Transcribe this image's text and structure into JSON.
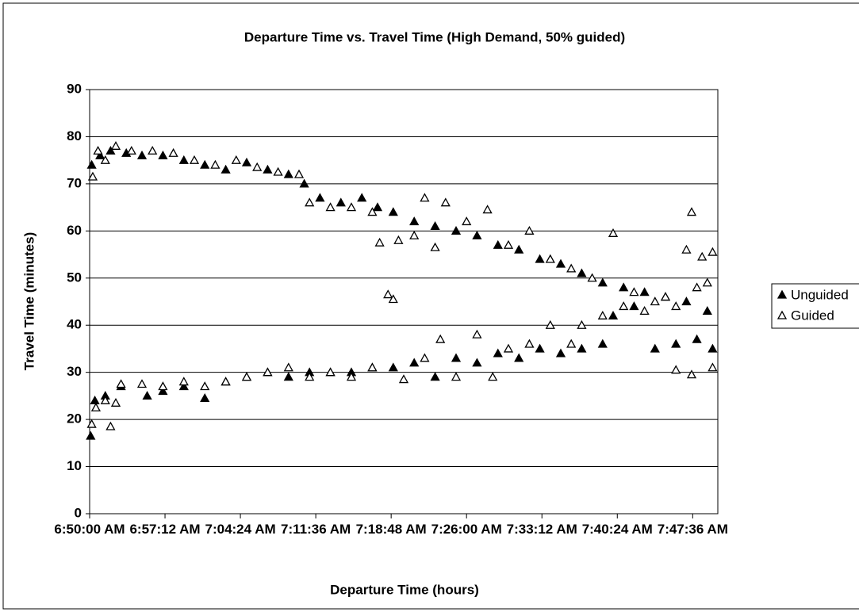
{
  "chart_data": {
    "type": "scatter",
    "title": "Departure Time vs. Travel Time (High Demand, 50% guided)",
    "xlabel": "Departure Time (hours)",
    "ylabel": "Travel Time (minutes)",
    "xlim": [
      410,
      470
    ],
    "xticks": [
      {
        "value": 410,
        "label": "6:50:00 AM"
      },
      {
        "value": 417.2,
        "label": "6:57:12 AM"
      },
      {
        "value": 424.4,
        "label": "7:04:24 AM"
      },
      {
        "value": 431.6,
        "label": "7:11:36 AM"
      },
      {
        "value": 438.8,
        "label": "7:18:48 AM"
      },
      {
        "value": 446,
        "label": "7:26:00 AM"
      },
      {
        "value": 453.2,
        "label": "7:33:12 AM"
      },
      {
        "value": 460.4,
        "label": "7:40:24 AM"
      },
      {
        "value": 467.6,
        "label": "7:47:36 AM"
      }
    ],
    "ylim": [
      0,
      90
    ],
    "yticks": [
      0,
      10,
      20,
      30,
      40,
      50,
      60,
      70,
      80,
      90
    ],
    "grid": true,
    "legend": "right",
    "series": [
      {
        "name": "Unguided",
        "color": "#000000",
        "marker": "filled-triangle",
        "x": [
          410.2,
          411,
          412,
          413.5,
          415,
          417,
          419,
          421,
          423,
          425,
          427,
          429,
          430.5,
          432,
          434,
          436,
          437.5,
          439,
          441,
          443,
          445,
          447,
          449,
          451,
          453,
          455,
          457,
          459,
          461,
          463,
          465,
          467,
          469,
          410.1,
          410.5,
          411.5,
          413,
          415.5,
          417,
          419,
          421,
          423,
          425,
          427,
          429,
          431,
          433,
          435,
          437,
          439,
          441,
          443,
          445,
          447,
          449,
          451,
          453,
          455,
          457,
          459,
          460,
          462,
          464,
          466,
          468,
          469.5
        ],
        "y": [
          74,
          76,
          77,
          76.5,
          76,
          76,
          75,
          74,
          73,
          74.5,
          73,
          72,
          70,
          67,
          66,
          67,
          65,
          64,
          62,
          61,
          60,
          59,
          57,
          56,
          54,
          53,
          51,
          49,
          48,
          47,
          46,
          45,
          43,
          16.5,
          24,
          25,
          27,
          25,
          26,
          27,
          24.5,
          28,
          29,
          30,
          29,
          30,
          30,
          30,
          31,
          31,
          32,
          29,
          33,
          32,
          34,
          33,
          35,
          34,
          35,
          36,
          42,
          44,
          35,
          36,
          37,
          35
        ]
      },
      {
        "name": "Guided",
        "color": "#000000",
        "marker": "open-triangle",
        "x": [
          410.3,
          410.8,
          411.5,
          412.5,
          414,
          416,
          418,
          420,
          422,
          424,
          426,
          428,
          430,
          431,
          433,
          435,
          437,
          437.7,
          439.5,
          441,
          442,
          443,
          444,
          446,
          448,
          450,
          452,
          454,
          456,
          458,
          460,
          462,
          464,
          466,
          467,
          467.5,
          468.5,
          469.5,
          410.2,
          410.6,
          411.5,
          412,
          412.5,
          413,
          415,
          417,
          419,
          421,
          423,
          425,
          427,
          429,
          431,
          433,
          435,
          437,
          438.5,
          439,
          440,
          442,
          443.5,
          445,
          447,
          448.5,
          450,
          452,
          454,
          456,
          457,
          459,
          461,
          463,
          465,
          466,
          467.5,
          468,
          469.5,
          469
        ],
        "y": [
          71.5,
          77,
          75,
          78,
          77,
          77,
          76.5,
          75,
          74,
          75,
          73.5,
          72.5,
          72,
          66,
          65,
          65,
          64,
          57.5,
          58,
          59,
          67,
          56.5,
          66,
          62,
          64.5,
          57,
          60,
          54,
          52,
          50,
          59.5,
          47,
          45,
          44,
          56,
          64,
          54.5,
          55.5,
          19,
          22.5,
          24,
          18.5,
          23.5,
          27.5,
          27.5,
          27,
          28,
          27,
          28,
          29,
          30,
          31,
          29,
          30,
          29,
          31,
          46.5,
          45.5,
          28.5,
          33,
          37,
          29,
          38,
          29,
          35,
          36,
          40,
          36,
          40,
          42,
          44,
          43,
          46,
          30.5,
          29.5,
          48,
          31,
          49
        ]
      }
    ]
  }
}
